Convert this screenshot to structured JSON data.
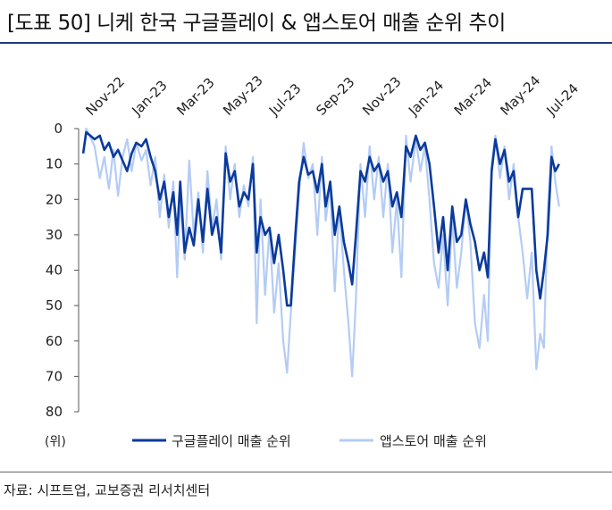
{
  "title": "[도표 50] 니케 한국 구글플레이 & 앱스토어 매출 순위 추이",
  "source": "자료: 시프트업, 교보증권 리서치센터",
  "colors": {
    "google": "#0a3a9c",
    "apple": "#b4ccf5",
    "rule": "#1f3a7a"
  },
  "chart_data": {
    "type": "line",
    "y_unit_label": "(위)",
    "ylim": [
      0,
      80
    ],
    "y_inverted": true,
    "y_ticks": [
      0,
      10,
      20,
      30,
      40,
      50,
      60,
      70,
      80
    ],
    "x_range": [
      "2022-10-15",
      "2024-07-15"
    ],
    "x_ticks": [
      {
        "label": "Nov-22",
        "date": "2022-11-01"
      },
      {
        "label": "Jan-23",
        "date": "2023-01-01"
      },
      {
        "label": "Mar-23",
        "date": "2023-03-01"
      },
      {
        "label": "May-23",
        "date": "2023-05-01"
      },
      {
        "label": "Jul-23",
        "date": "2023-07-01"
      },
      {
        "label": "Sep-23",
        "date": "2023-09-01"
      },
      {
        "label": "Nov-23",
        "date": "2023-11-01"
      },
      {
        "label": "Jan-24",
        "date": "2024-01-01"
      },
      {
        "label": "Mar-24",
        "date": "2024-03-01"
      },
      {
        "label": "May-24",
        "date": "2024-05-01"
      },
      {
        "label": "Jul-24",
        "date": "2024-07-01"
      }
    ],
    "series": [
      {
        "name": "앱스토어 매출 순위",
        "key": "apple",
        "points": [
          [
            "2022-10-21",
            7
          ],
          [
            "2022-10-25",
            0
          ],
          [
            "2022-11-05",
            5
          ],
          [
            "2022-11-12",
            14
          ],
          [
            "2022-11-18",
            8
          ],
          [
            "2022-11-24",
            17
          ],
          [
            "2022-11-30",
            6
          ],
          [
            "2022-12-06",
            19
          ],
          [
            "2022-12-12",
            8
          ],
          [
            "2022-12-18",
            3
          ],
          [
            "2022-12-24",
            12
          ],
          [
            "2022-12-30",
            4
          ],
          [
            "2023-01-06",
            9
          ],
          [
            "2023-01-12",
            6
          ],
          [
            "2023-01-18",
            16
          ],
          [
            "2023-01-24",
            8
          ],
          [
            "2023-01-30",
            25
          ],
          [
            "2023-02-05",
            13
          ],
          [
            "2023-02-11",
            28
          ],
          [
            "2023-02-17",
            15
          ],
          [
            "2023-02-22",
            42
          ],
          [
            "2023-02-26",
            20
          ],
          [
            "2023-03-04",
            37
          ],
          [
            "2023-03-10",
            9
          ],
          [
            "2023-03-16",
            30
          ],
          [
            "2023-03-22",
            18
          ],
          [
            "2023-03-28",
            35
          ],
          [
            "2023-04-03",
            12
          ],
          [
            "2023-04-09",
            28
          ],
          [
            "2023-04-15",
            20
          ],
          [
            "2023-04-21",
            37
          ],
          [
            "2023-04-27",
            5
          ],
          [
            "2023-05-03",
            20
          ],
          [
            "2023-05-09",
            10
          ],
          [
            "2023-05-15",
            25
          ],
          [
            "2023-05-21",
            16
          ],
          [
            "2023-05-27",
            22
          ],
          [
            "2023-06-02",
            8
          ],
          [
            "2023-06-07",
            55
          ],
          [
            "2023-06-12",
            20
          ],
          [
            "2023-06-18",
            47
          ],
          [
            "2023-06-24",
            28
          ],
          [
            "2023-06-30",
            52
          ],
          [
            "2023-07-06",
            38
          ],
          [
            "2023-07-12",
            60
          ],
          [
            "2023-07-17",
            69
          ],
          [
            "2023-07-22",
            52
          ],
          [
            "2023-07-28",
            34
          ],
          [
            "2023-08-02",
            18
          ],
          [
            "2023-08-08",
            4
          ],
          [
            "2023-08-14",
            14
          ],
          [
            "2023-08-20",
            10
          ],
          [
            "2023-08-26",
            30
          ],
          [
            "2023-09-01",
            8
          ],
          [
            "2023-09-06",
            26
          ],
          [
            "2023-09-12",
            16
          ],
          [
            "2023-09-18",
            46
          ],
          [
            "2023-09-24",
            22
          ],
          [
            "2023-09-30",
            40
          ],
          [
            "2023-10-06",
            55
          ],
          [
            "2023-10-11",
            70
          ],
          [
            "2023-10-16",
            48
          ],
          [
            "2023-10-22",
            10
          ],
          [
            "2023-10-28",
            25
          ],
          [
            "2023-11-03",
            5
          ],
          [
            "2023-11-09",
            20
          ],
          [
            "2023-11-15",
            8
          ],
          [
            "2023-11-21",
            25
          ],
          [
            "2023-11-27",
            10
          ],
          [
            "2023-12-03",
            35
          ],
          [
            "2023-12-09",
            20
          ],
          [
            "2023-12-15",
            42
          ],
          [
            "2023-12-21",
            2
          ],
          [
            "2023-12-27",
            15
          ],
          [
            "2024-01-03",
            3
          ],
          [
            "2024-01-09",
            12
          ],
          [
            "2024-01-15",
            5
          ],
          [
            "2024-01-21",
            20
          ],
          [
            "2024-01-27",
            38
          ],
          [
            "2024-02-02",
            45
          ],
          [
            "2024-02-08",
            30
          ],
          [
            "2024-02-14",
            50
          ],
          [
            "2024-02-20",
            25
          ],
          [
            "2024-02-26",
            45
          ],
          [
            "2024-03-03",
            35
          ],
          [
            "2024-03-09",
            20
          ],
          [
            "2024-03-15",
            32
          ],
          [
            "2024-03-21",
            55
          ],
          [
            "2024-03-27",
            62
          ],
          [
            "2024-04-02",
            47
          ],
          [
            "2024-04-07",
            60
          ],
          [
            "2024-04-12",
            10
          ],
          [
            "2024-04-17",
            2
          ],
          [
            "2024-04-23",
            14
          ],
          [
            "2024-04-29",
            5
          ],
          [
            "2024-05-05",
            20
          ],
          [
            "2024-05-11",
            10
          ],
          [
            "2024-05-17",
            25
          ],
          [
            "2024-05-23",
            35
          ],
          [
            "2024-05-29",
            48
          ],
          [
            "2024-06-04",
            35
          ],
          [
            "2024-06-10",
            68
          ],
          [
            "2024-06-15",
            58
          ],
          [
            "2024-06-20",
            62
          ],
          [
            "2024-06-25",
            24
          ],
          [
            "2024-06-30",
            5
          ],
          [
            "2024-07-05",
            15
          ],
          [
            "2024-07-10",
            22
          ]
        ]
      },
      {
        "name": "구글플레이 매출 순위",
        "key": "google",
        "points": [
          [
            "2022-10-21",
            7
          ],
          [
            "2022-10-25",
            1
          ],
          [
            "2022-11-05",
            3
          ],
          [
            "2022-11-12",
            2
          ],
          [
            "2022-11-18",
            6
          ],
          [
            "2022-11-24",
            4
          ],
          [
            "2022-11-30",
            8
          ],
          [
            "2022-12-06",
            6
          ],
          [
            "2022-12-12",
            9
          ],
          [
            "2022-12-18",
            12
          ],
          [
            "2022-12-24",
            7
          ],
          [
            "2022-12-30",
            4
          ],
          [
            "2023-01-06",
            5
          ],
          [
            "2023-01-12",
            3
          ],
          [
            "2023-01-18",
            8
          ],
          [
            "2023-01-24",
            12
          ],
          [
            "2023-01-30",
            20
          ],
          [
            "2023-02-05",
            15
          ],
          [
            "2023-02-11",
            25
          ],
          [
            "2023-02-17",
            18
          ],
          [
            "2023-02-22",
            30
          ],
          [
            "2023-02-26",
            15
          ],
          [
            "2023-03-04",
            35
          ],
          [
            "2023-03-10",
            28
          ],
          [
            "2023-03-16",
            33
          ],
          [
            "2023-03-22",
            20
          ],
          [
            "2023-03-28",
            32
          ],
          [
            "2023-04-03",
            17
          ],
          [
            "2023-04-09",
            30
          ],
          [
            "2023-04-15",
            25
          ],
          [
            "2023-04-21",
            35
          ],
          [
            "2023-04-27",
            7
          ],
          [
            "2023-05-03",
            15
          ],
          [
            "2023-05-09",
            12
          ],
          [
            "2023-05-15",
            22
          ],
          [
            "2023-05-21",
            18
          ],
          [
            "2023-05-27",
            20
          ],
          [
            "2023-06-02",
            10
          ],
          [
            "2023-06-07",
            35
          ],
          [
            "2023-06-12",
            25
          ],
          [
            "2023-06-18",
            30
          ],
          [
            "2023-06-24",
            28
          ],
          [
            "2023-06-30",
            38
          ],
          [
            "2023-07-06",
            30
          ],
          [
            "2023-07-12",
            40
          ],
          [
            "2023-07-17",
            50
          ],
          [
            "2023-07-22",
            50
          ],
          [
            "2023-07-28",
            30
          ],
          [
            "2023-08-02",
            15
          ],
          [
            "2023-08-08",
            8
          ],
          [
            "2023-08-14",
            13
          ],
          [
            "2023-08-20",
            12
          ],
          [
            "2023-08-26",
            18
          ],
          [
            "2023-09-01",
            10
          ],
          [
            "2023-09-06",
            22
          ],
          [
            "2023-09-12",
            15
          ],
          [
            "2023-09-18",
            30
          ],
          [
            "2023-09-24",
            22
          ],
          [
            "2023-09-30",
            32
          ],
          [
            "2023-10-06",
            38
          ],
          [
            "2023-10-11",
            44
          ],
          [
            "2023-10-16",
            30
          ],
          [
            "2023-10-22",
            12
          ],
          [
            "2023-10-28",
            15
          ],
          [
            "2023-11-03",
            8
          ],
          [
            "2023-11-09",
            12
          ],
          [
            "2023-11-15",
            10
          ],
          [
            "2023-11-21",
            15
          ],
          [
            "2023-11-27",
            12
          ],
          [
            "2023-12-03",
            22
          ],
          [
            "2023-12-09",
            18
          ],
          [
            "2023-12-15",
            25
          ],
          [
            "2023-12-21",
            5
          ],
          [
            "2023-12-27",
            8
          ],
          [
            "2024-01-03",
            2
          ],
          [
            "2024-01-09",
            6
          ],
          [
            "2024-01-15",
            4
          ],
          [
            "2024-01-21",
            10
          ],
          [
            "2024-01-27",
            22
          ],
          [
            "2024-02-02",
            35
          ],
          [
            "2024-02-08",
            25
          ],
          [
            "2024-02-14",
            40
          ],
          [
            "2024-02-20",
            22
          ],
          [
            "2024-02-26",
            32
          ],
          [
            "2024-03-03",
            30
          ],
          [
            "2024-03-09",
            20
          ],
          [
            "2024-03-15",
            27
          ],
          [
            "2024-03-21",
            32
          ],
          [
            "2024-03-27",
            40
          ],
          [
            "2024-04-02",
            35
          ],
          [
            "2024-04-07",
            42
          ],
          [
            "2024-04-12",
            12
          ],
          [
            "2024-04-17",
            3
          ],
          [
            "2024-04-23",
            10
          ],
          [
            "2024-04-29",
            6
          ],
          [
            "2024-05-05",
            15
          ],
          [
            "2024-05-11",
            12
          ],
          [
            "2024-05-17",
            25
          ],
          [
            "2024-05-23",
            17
          ],
          [
            "2024-05-29",
            17
          ],
          [
            "2024-06-04",
            17
          ],
          [
            "2024-06-10",
            40
          ],
          [
            "2024-06-15",
            48
          ],
          [
            "2024-06-20",
            40
          ],
          [
            "2024-06-25",
            30
          ],
          [
            "2024-06-30",
            8
          ],
          [
            "2024-07-05",
            12
          ],
          [
            "2024-07-10",
            10
          ]
        ]
      }
    ],
    "legend": [
      {
        "label": "구글플레이 매출 순위",
        "key": "google"
      },
      {
        "label": "앱스토어 매출 순위",
        "key": "apple"
      }
    ],
    "legend_position": "bottom"
  }
}
